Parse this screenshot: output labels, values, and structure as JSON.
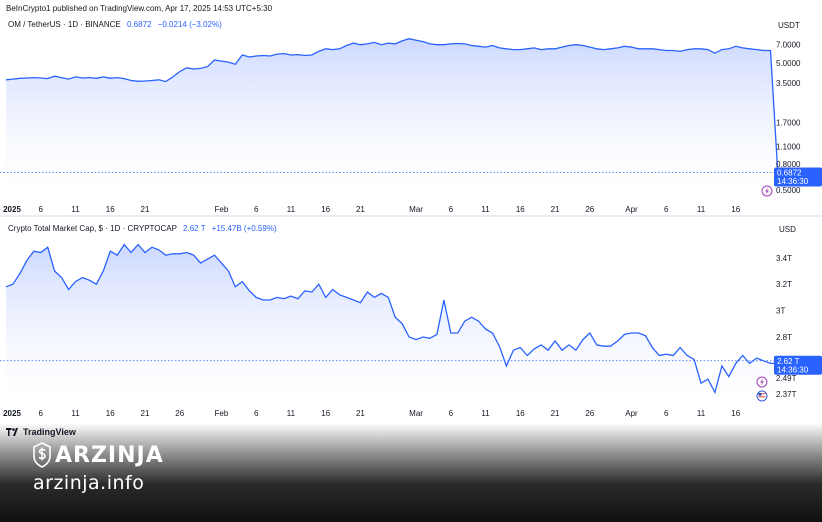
{
  "header": {
    "published": "BeInCrypto1 published on TradingView.com, Apr 17, 2025 14:53 UTC+5:30"
  },
  "top": {
    "legend": {
      "symbol": "OM / TetherUS · 1D · BINANCE",
      "price": "0.6872",
      "change": "−0.0214 (−3.02%)"
    },
    "currency": "USDT",
    "price_label": "0.6872",
    "time_label": "14:36:30"
  },
  "bottom": {
    "legend": {
      "symbol": "Crypto Total Market Cap, $ · 1D · CRYPTOCAP",
      "price": "2.62 T",
      "change": "+15.47B (+0.59%)"
    },
    "currency": "USD",
    "price_label": "2.62 T",
    "time_label": "14:36:30"
  },
  "footer": {
    "tradingview": "TradingView",
    "brand_name": "ARZINJA",
    "brand_url": "arzinja.info"
  },
  "colors": {
    "line": "#2962ff",
    "fill_top": "#c9d6ff",
    "accent": "#2962ff"
  },
  "chart_data": [
    {
      "type": "area",
      "title": "OM / TetherUS · 1D · BINANCE",
      "y_scale": "log",
      "y_ticks": [
        "7.0000",
        "5.0000",
        "3.5000",
        "1.7000",
        "1.1000",
        "0.8000",
        "0.5000"
      ],
      "y_tick_values": [
        7.0,
        5.0,
        3.5,
        1.7,
        1.1,
        0.8,
        0.5
      ],
      "x_ticks": [
        "2025",
        "6",
        "11",
        "16",
        "21",
        "Feb",
        "6",
        "11",
        "16",
        "21",
        "Mar",
        "6",
        "11",
        "16",
        "21",
        "26",
        "Apr",
        "6",
        "11",
        "16"
      ],
      "x_tick_days": [
        0,
        5,
        10,
        15,
        20,
        31,
        36,
        41,
        46,
        51,
        59,
        64,
        69,
        74,
        79,
        84,
        90,
        95,
        100,
        105
      ],
      "x_start": "2025-01-01",
      "ylim": [
        0.5,
        8.5
      ],
      "series": [
        {
          "values": [
            3.7,
            3.75,
            3.8,
            3.82,
            3.85,
            3.82,
            3.78,
            3.95,
            3.85,
            3.75,
            3.9,
            3.82,
            3.85,
            3.8,
            3.9,
            3.8,
            3.85,
            3.78,
            3.65,
            3.6,
            3.62,
            3.65,
            3.7,
            3.58,
            3.9,
            4.3,
            4.6,
            4.5,
            4.55,
            4.7,
            5.3,
            5.2,
            5.1,
            4.9,
            5.8,
            5.6,
            5.7,
            5.75,
            5.7,
            5.9,
            5.95,
            5.8,
            5.85,
            5.75,
            5.8,
            6.2,
            6.5,
            6.4,
            6.5,
            6.9,
            7.2,
            7.0,
            7.1,
            7.3,
            7.0,
            7.2,
            7.1,
            7.5,
            7.8,
            7.6,
            7.4,
            7.1,
            7.0,
            7.0,
            7.1,
            7.15,
            7.1,
            6.9,
            6.8,
            6.7,
            6.9,
            6.6,
            6.5,
            6.4,
            6.4,
            6.5,
            6.6,
            6.4,
            6.5,
            6.5,
            6.7,
            6.9,
            7.0,
            6.9,
            6.7,
            6.5,
            6.4,
            6.5,
            6.6,
            6.8,
            6.7,
            6.5,
            6.5,
            6.5,
            6.4,
            6.3,
            6.3,
            6.2,
            6.4,
            6.5,
            6.5,
            6.4,
            6.0,
            6.4,
            6.5,
            6.8,
            6.6,
            6.5,
            6.4,
            6.3,
            6.3,
            0.75,
            0.55,
            0.72,
            0.62,
            0.6,
            0.72,
            0.7,
            0.6872
          ]
        }
      ],
      "last_price": 0.6872
    },
    {
      "type": "area",
      "title": "Crypto Total Market Cap, $ · 1D · CRYPTOCAP",
      "y_ticks": [
        "3.4T",
        "3.2T",
        "3T",
        "2.8T",
        "2.49T",
        "2.37T"
      ],
      "y_tick_values": [
        3.4,
        3.2,
        3.0,
        2.8,
        2.49,
        2.37
      ],
      "x_ticks": [
        "2025",
        "6",
        "11",
        "16",
        "21",
        "26",
        "Feb",
        "6",
        "11",
        "16",
        "21",
        "Mar",
        "6",
        "11",
        "16",
        "21",
        "26",
        "Apr",
        "6",
        "11",
        "16"
      ],
      "x_tick_days": [
        0,
        5,
        10,
        15,
        20,
        25,
        31,
        36,
        41,
        46,
        51,
        59,
        64,
        69,
        74,
        79,
        84,
        90,
        95,
        100,
        105
      ],
      "x_start": "2025-01-01",
      "ylim": [
        2.3,
        3.55
      ],
      "series": [
        {
          "values": [
            3.18,
            3.2,
            3.28,
            3.38,
            3.45,
            3.44,
            3.48,
            3.3,
            3.25,
            3.16,
            3.22,
            3.25,
            3.23,
            3.2,
            3.3,
            3.45,
            3.42,
            3.5,
            3.44,
            3.5,
            3.44,
            3.48,
            3.46,
            3.42,
            3.43,
            3.43,
            3.44,
            3.42,
            3.36,
            3.39,
            3.42,
            3.36,
            3.3,
            3.18,
            3.22,
            3.15,
            3.1,
            3.08,
            3.08,
            3.1,
            3.09,
            3.11,
            3.09,
            3.15,
            3.14,
            3.2,
            3.1,
            3.16,
            3.12,
            3.1,
            3.08,
            3.06,
            3.14,
            3.1,
            3.13,
            3.1,
            2.95,
            2.9,
            2.8,
            2.78,
            2.8,
            2.79,
            2.82,
            3.08,
            2.83,
            2.83,
            2.92,
            2.95,
            2.92,
            2.86,
            2.83,
            2.73,
            2.58,
            2.7,
            2.72,
            2.66,
            2.71,
            2.74,
            2.7,
            2.77,
            2.7,
            2.74,
            2.7,
            2.78,
            2.83,
            2.74,
            2.73,
            2.73,
            2.77,
            2.82,
            2.83,
            2.83,
            2.81,
            2.72,
            2.66,
            2.67,
            2.66,
            2.72,
            2.66,
            2.63,
            2.45,
            2.48,
            2.38,
            2.58,
            2.5,
            2.6,
            2.66,
            2.6,
            2.64,
            2.62,
            2.6,
            2.6,
            2.61,
            2.62
          ]
        }
      ],
      "last_price": 2.62
    }
  ]
}
